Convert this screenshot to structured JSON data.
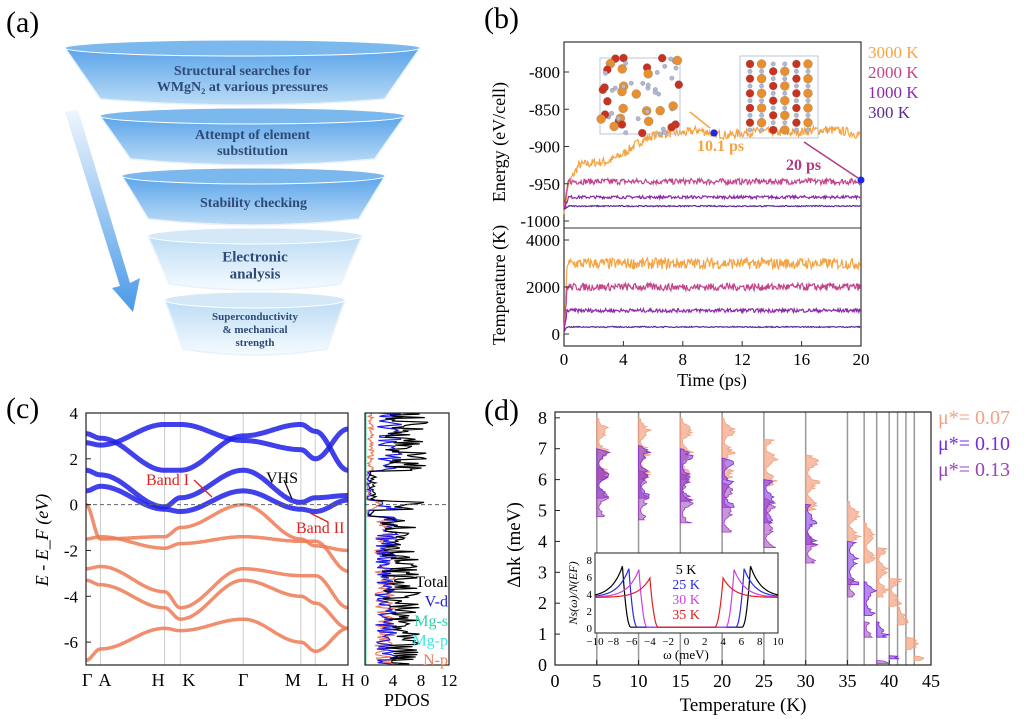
{
  "panel_labels": {
    "a": "(a)",
    "b": "(b)",
    "c": "(c)",
    "d": "(d)"
  },
  "funnel": {
    "steps": [
      {
        "lines": [
          "Structural searches for",
          "WMgN₂ at various pressures"
        ]
      },
      {
        "lines": [
          "Attempt of element",
          "substitution"
        ]
      },
      {
        "lines": [
          "Stability checking"
        ]
      },
      {
        "lines": [
          "Electronic",
          "analysis"
        ]
      },
      {
        "lines": [
          "Superconductivity",
          "& mechanical",
          "strength"
        ]
      }
    ]
  },
  "chart_data": [
    {
      "panel": "b",
      "type": "line",
      "xlabel": "Time (ps)",
      "xlim": [
        0,
        20
      ],
      "xticks": [
        "0",
        "4",
        "8",
        "12",
        "16",
        "20"
      ],
      "subplots": [
        {
          "ylabel": "Energy (eV/cell)",
          "ylim": [
            -1010,
            -760
          ],
          "yticks": [
            "-800",
            "-850",
            "-900",
            "-950",
            "-1000"
          ],
          "series": [
            {
              "name": "3000 K",
              "color": "#f5a444",
              "x": [
                0,
                1,
                2,
                3,
                4,
                5,
                6,
                7,
                8,
                9,
                10,
                11,
                12,
                13,
                14,
                15,
                16,
                17,
                18,
                19,
                20
              ],
              "values": [
                -960,
                -925,
                -922,
                -920,
                -910,
                -895,
                -885,
                -882,
                -882,
                -878,
                -882,
                -885,
                -882,
                -880,
                -880,
                -882,
                -880,
                -878,
                -878,
                -880,
                -885
              ]
            },
            {
              "name": "2000 K",
              "color": "#c2458c",
              "x": [
                0,
                20
              ],
              "values": [
                -947,
                -947
              ]
            },
            {
              "name": "1000 K",
              "color": "#8a2aa8",
              "x": [
                0,
                20
              ],
              "values": [
                -968,
                -968
              ]
            },
            {
              "name": "300 K",
              "color": "#5b2a92",
              "x": [
                0,
                20
              ],
              "values": [
                -980,
                -980
              ]
            }
          ],
          "annotations": [
            {
              "text": "10.1 ps",
              "x": 10.1,
              "y": -882
            },
            {
              "text": "20 ps",
              "x": 20,
              "y": -945
            }
          ]
        },
        {
          "ylabel": "Temperature (K)",
          "ylim": [
            -300,
            4400
          ],
          "yticks": [
            "4000",
            "2000",
            "0"
          ],
          "series": [
            {
              "name": "3000 K",
              "color": "#f5a444",
              "mean": 3000,
              "noise": 300
            },
            {
              "name": "2000 K",
              "color": "#c2458c",
              "mean": 2000,
              "noise": 200
            },
            {
              "name": "1000 K",
              "color": "#8a2aa8",
              "mean": 1000,
              "noise": 100
            },
            {
              "name": "300 K",
              "color": "#5b2a92",
              "mean": 300,
              "noise": 30
            }
          ]
        }
      ],
      "legend": [
        "3000 K",
        "2000 K",
        "1000 K",
        "300 K"
      ],
      "legend_placement": "right"
    },
    {
      "panel": "c",
      "type": "line",
      "subtype": "band-structure",
      "ylabel": "E - E_F (eV)",
      "ylim": [
        -7,
        4
      ],
      "yticks": [
        "4",
        "2",
        "0",
        "-2",
        "-4",
        "-6"
      ],
      "kpoints": [
        "Γ",
        "A",
        "H",
        "K",
        "Γ",
        "M",
        "L",
        "H"
      ],
      "kpath": [
        0,
        0.055,
        0.3,
        0.36,
        0.6,
        0.82,
        0.875,
        1
      ],
      "bands": [
        {
          "orbital": "V-d",
          "energies": [
            1.5,
            1.3,
            -0.1,
            0.3,
            1.5,
            0.1,
            0.3,
            0.4
          ]
        },
        {
          "orbital": "V-d",
          "energies": [
            0.6,
            0.8,
            -0.2,
            -0.3,
            0.6,
            -0.2,
            -0.3,
            0.2
          ]
        },
        {
          "orbital": "V-d",
          "energies": [
            3.1,
            2.9,
            1.5,
            1.5,
            3.0,
            3.5,
            3.2,
            1.5
          ]
        },
        {
          "orbital": "V-d",
          "energies": [
            2.7,
            2.6,
            3.5,
            3.5,
            2.8,
            2.4,
            2.0,
            3.3
          ]
        },
        {
          "orbital": "N-p",
          "energies": [
            0,
            -1.5,
            -1.4,
            -1.0,
            0,
            -1.5,
            -1.8,
            -2.0
          ]
        },
        {
          "orbital": "N-p",
          "energies": [
            -1.5,
            -1.4,
            -1.9,
            -1.7,
            -1.4,
            -1.6,
            -1.6,
            -2.9
          ]
        },
        {
          "orbital": "N-p",
          "energies": [
            -2.8,
            -2.7,
            -3.8,
            -4.5,
            -2.8,
            -3.1,
            -3.1,
            -4.5
          ]
        },
        {
          "orbital": "N-p",
          "energies": [
            -3.3,
            -3.5,
            -4.5,
            -5.0,
            -3.3,
            -4.0,
            -4.3,
            -5.4
          ]
        },
        {
          "orbital": "N-p",
          "energies": [
            -6.8,
            -6.3,
            -5.4,
            -5.5,
            -5.0,
            -6.0,
            -6.4,
            -5.4
          ]
        }
      ],
      "annotations": [
        "Band I",
        "VHS",
        "Band II"
      ],
      "pdos": {
        "xlabel": "PDOS",
        "xlim": [
          0,
          12
        ],
        "xticks": [
          "0",
          "4",
          "8",
          "12"
        ],
        "legend": [
          {
            "name": "Total",
            "color": "#000000"
          },
          {
            "name": "V-d",
            "color": "#1a1ae6"
          },
          {
            "name": "Mg-s",
            "color": "#2fd4a8"
          },
          {
            "name": "Mg-p",
            "color": "#3ee8e8"
          },
          {
            "name": "N-p",
            "color": "#ee7a58"
          }
        ]
      },
      "colors": {
        "V-d": "#2020e8",
        "N-p": "#ee7a55"
      }
    },
    {
      "panel": "d",
      "type": "bar",
      "subtype": "gap-distribution",
      "xlabel": "Temperature (K)",
      "ylabel": "Δnk (meV)",
      "xlim": [
        0,
        45
      ],
      "ylim": [
        0,
        8.2
      ],
      "xticks": [
        "0",
        "5",
        "10",
        "15",
        "20",
        "25",
        "30",
        "35",
        "40",
        "45"
      ],
      "yticks": [
        "0",
        "1",
        "2",
        "3",
        "4",
        "5",
        "6",
        "7",
        "8"
      ],
      "temperatures": [
        5,
        10,
        15,
        20,
        25,
        30,
        35,
        37,
        38.5,
        40,
        41,
        42,
        43
      ],
      "series": [
        {
          "name": "μ*= 0.07",
          "color": "#f2a282",
          "gap_ranges": [
            [
              6,
              8
            ],
            [
              6,
              8
            ],
            [
              6,
              8
            ],
            [
              6,
              8
            ],
            [
              5.8,
              7.3
            ],
            [
              5,
              6.8
            ],
            [
              4,
              5.3
            ],
            [
              3.3,
              4.6
            ],
            [
              2.2,
              3.8
            ],
            [
              1.9,
              2.8
            ],
            [
              1.3,
              1.9
            ],
            [
              0.5,
              0.9
            ],
            [
              0.15,
              0.3
            ]
          ]
        },
        {
          "name": "μ*= 0.10",
          "color": "#7a2ad8",
          "gap_ranges": [
            [
              5.4,
              7
            ],
            [
              5.4,
              7.1
            ],
            [
              5.3,
              7
            ],
            [
              5.1,
              6.7
            ],
            [
              4.6,
              6
            ],
            [
              3.9,
              5.2
            ],
            [
              2.6,
              4
            ],
            [
              1.6,
              2.7
            ],
            [
              0.9,
              1.4
            ],
            [
              0.2,
              0.3
            ]
          ]
        },
        {
          "name": "μ*= 0.13",
          "color": "#9a42b8",
          "gap_ranges": [
            [
              4.8,
              6.4
            ],
            [
              4.7,
              6.3
            ],
            [
              4.6,
              6.2
            ],
            [
              4.3,
              5.9
            ],
            [
              3.8,
              5.4
            ],
            [
              3.3,
              4.3
            ],
            [
              2.2,
              2.8
            ],
            [
              0.9,
              1.4
            ],
            [
              0.05,
              0.15
            ]
          ]
        }
      ],
      "legend_placement": "right",
      "inset": {
        "type": "line",
        "xlabel": "ω (meV)",
        "ylabel": "Ns(ω)/N(EF)",
        "xlim": [
          -10,
          10
        ],
        "ylim": [
          0,
          8.5
        ],
        "xticks": [
          "−10",
          "−8",
          "−6",
          "−4",
          "−2",
          "0",
          "2",
          "4",
          "6",
          "8",
          "10"
        ],
        "yticks": [
          "0",
          "2",
          "4",
          "6",
          "8"
        ],
        "series": [
          {
            "name": "5 K",
            "color": "#000000",
            "gap": 7.0,
            "peak": 7.3
          },
          {
            "name": "25 K",
            "color": "#2a2ae8",
            "gap": 6.3,
            "peak": 7.0
          },
          {
            "name": "30 K",
            "color": "#d040e0",
            "gap": 5.2,
            "peak": 6.9
          },
          {
            "name": "35 K",
            "color": "#e02020",
            "gap": 4.0,
            "peak": 5.9
          }
        ]
      }
    }
  ]
}
